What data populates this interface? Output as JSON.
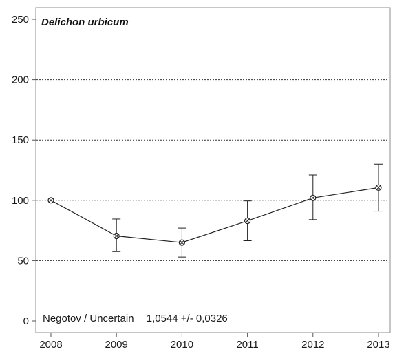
{
  "chart_data": {
    "type": "line",
    "title": "Delichon urbicum",
    "xlabel": "",
    "ylabel": "",
    "x": [
      "2008",
      "2009",
      "2010",
      "2011",
      "2012",
      "2013"
    ],
    "series": [
      {
        "values": [
          100,
          70.5,
          65,
          83,
          102,
          110.5
        ],
        "error_low": [
          100,
          57.5,
          53,
          66.5,
          84,
          91
        ],
        "error_high": [
          100,
          84.5,
          77,
          99.5,
          121,
          130
        ],
        "marker": "circle-x",
        "color": "#222222"
      }
    ],
    "ylim": [
      0,
      250
    ],
    "yticks": [
      0,
      50,
      100,
      150,
      200,
      250
    ],
    "ytick_labels": [
      "0",
      "50",
      "100",
      "150",
      "200",
      "250"
    ],
    "grid": "horizontal-dotted",
    "annotation": {
      "label": "Negotov / Uncertain",
      "value": "1,0544 +/- 0,0326"
    }
  }
}
